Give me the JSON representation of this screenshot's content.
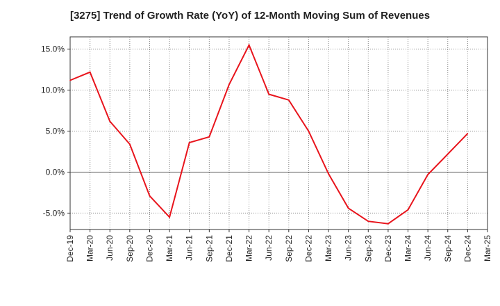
{
  "title": "[3275]  Trend of Growth Rate (YoY) of 12-Month Moving Sum of Revenues",
  "chart_data": {
    "type": "line",
    "title": "[3275]  Trend of Growth Rate (YoY) of 12-Month Moving Sum of Revenues",
    "xlabel": "",
    "ylabel": "",
    "x_tick_labels": [
      "Dec-19",
      "Mar-20",
      "Jun-20",
      "Sep-20",
      "Dec-20",
      "Mar-21",
      "Jun-21",
      "Sep-21",
      "Dec-21",
      "Mar-22",
      "Jun-22",
      "Sep-22",
      "Dec-22",
      "Mar-23",
      "Jun-23",
      "Sep-23",
      "Dec-23",
      "Mar-24",
      "Jun-24",
      "Sep-24",
      "Dec-24",
      "Mar-25"
    ],
    "y_ticks": [
      -5,
      0,
      5,
      10,
      15
    ],
    "y_tick_labels": [
      "-5.0%",
      "0.0%",
      "5.0%",
      "10.0%",
      "15.0%"
    ],
    "ylim": [
      -7,
      16.5
    ],
    "grid": true,
    "series": [
      {
        "color": "#e8141c",
        "x": [
          "Dec-19",
          "Mar-20",
          "Jun-20",
          "Sep-20",
          "Dec-20",
          "Mar-21",
          "Jun-21",
          "Sep-21",
          "Dec-21",
          "Mar-22",
          "Jun-22",
          "Sep-22",
          "Dec-22",
          "Mar-23",
          "Jun-23",
          "Sep-23",
          "Dec-23",
          "Mar-24",
          "Jun-24",
          "Sep-24",
          "Dec-24"
        ],
        "values": [
          11.2,
          12.2,
          6.2,
          3.4,
          -2.9,
          -5.5,
          3.6,
          4.3,
          10.7,
          15.5,
          9.5,
          8.8,
          5.0,
          -0.2,
          -4.4,
          -6.0,
          -6.3,
          -4.6,
          -0.3,
          2.2,
          4.7
        ]
      }
    ]
  }
}
